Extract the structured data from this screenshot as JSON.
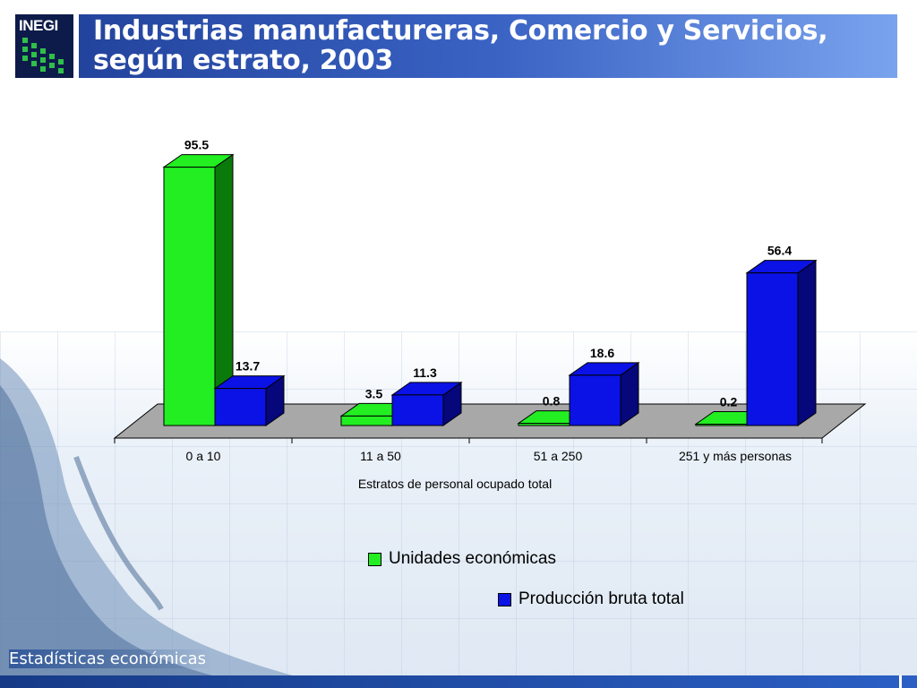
{
  "header": {
    "logo_text": "INEGI",
    "title_line1": "Industrias manufactureras, Comercio y Servicios,",
    "title_line2": "según estrato, 2003"
  },
  "footer": {
    "label": "Estadísticas económicas"
  },
  "colors": {
    "green": "#22ee22",
    "green_dark": "#0a7a0a",
    "blue": "#0b12e6",
    "blue_dark": "#05077a",
    "floor": "#a8a8a8"
  },
  "chart_data": {
    "type": "bar",
    "categories": [
      "0 a 10",
      "11 a 50",
      "51 a 250",
      "251 y más personas"
    ],
    "series": [
      {
        "name": "Unidades económicas",
        "values": [
          95.5,
          3.5,
          0.8,
          0.2
        ],
        "color": "#22ee22"
      },
      {
        "name": "Producción bruta total",
        "values": [
          13.7,
          11.3,
          18.6,
          56.4
        ],
        "color": "#0b12e6"
      }
    ],
    "value_labels": [
      [
        "95.5",
        "3.5",
        "0.8",
        "0.2"
      ],
      [
        "13.7",
        "11.3",
        "18.6",
        "56.4"
      ]
    ],
    "xlabel": "Estratos de personal ocupado total",
    "ylabel": "",
    "ylim": [
      0,
      100
    ],
    "legend_placement": "bottom",
    "grid": false,
    "three_d": true
  }
}
